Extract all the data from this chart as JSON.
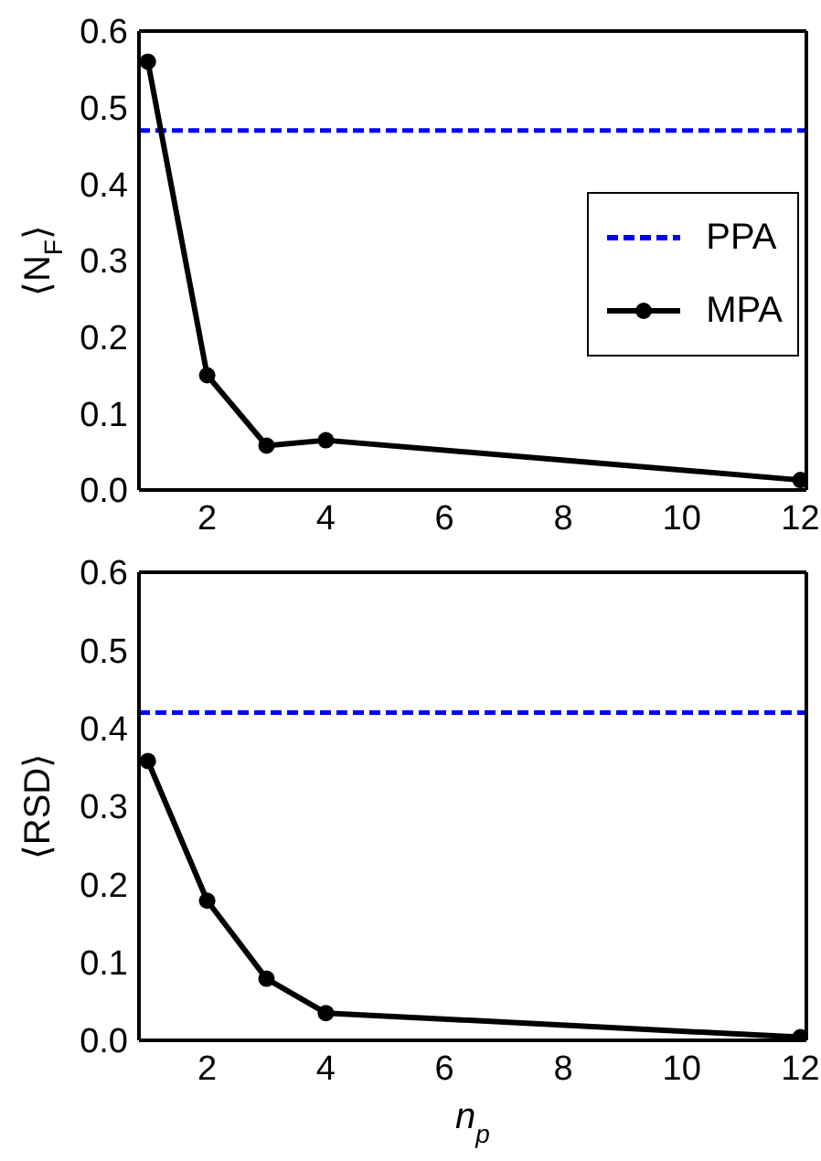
{
  "chart_data": [
    {
      "type": "line",
      "ylabel": "⟨N$_{F}$⟩",
      "xlim": [
        0.85,
        12.1
      ],
      "xticks": [
        2,
        4,
        6,
        8,
        10,
        12
      ],
      "ylim": [
        0,
        0.6
      ],
      "yticks": [
        {
          "value": 0,
          "label": "0.0"
        },
        {
          "value": 0.1,
          "label": "0.1"
        },
        {
          "value": 0.2,
          "label": "0.2"
        },
        {
          "value": 0.3,
          "label": "0.3"
        },
        {
          "value": 0.4,
          "label": "0.4"
        },
        {
          "value": 0.5,
          "label": "0.5"
        },
        {
          "value": 0.6,
          "label": "0.6"
        }
      ],
      "legend": "right",
      "series": [
        {
          "name": "PPA",
          "color": "#0000ff",
          "line_style": "dashed",
          "marker": "none",
          "x": [
            0.85,
            12.1
          ],
          "values": [
            0.47,
            0.47
          ]
        },
        {
          "name": "MPA",
          "color": "#000000",
          "line_style": "solid",
          "marker": "circle",
          "x": [
            1,
            2,
            3,
            4,
            12
          ],
          "values": [
            0.56,
            0.15,
            0.058,
            0.065,
            0.013
          ]
        }
      ]
    },
    {
      "type": "line",
      "ylabel": "⟨RSD⟩",
      "xlabel": "n$_{p}$",
      "xlim": [
        0.85,
        12.1
      ],
      "xticks": [
        2,
        4,
        6,
        8,
        10,
        12
      ],
      "ylim": [
        0,
        0.6
      ],
      "yticks": [
        {
          "value": 0,
          "label": "0.0"
        },
        {
          "value": 0.1,
          "label": "0.1"
        },
        {
          "value": 0.2,
          "label": "0.2"
        },
        {
          "value": 0.3,
          "label": "0.3"
        },
        {
          "value": 0.4,
          "label": "0.4"
        },
        {
          "value": 0.5,
          "label": "0.5"
        },
        {
          "value": 0.6,
          "label": "0.6"
        }
      ],
      "legend": false,
      "series": [
        {
          "color": "#0000ff",
          "line_style": "dashed",
          "marker": "none",
          "x": [
            0.85,
            12.1
          ],
          "values": [
            0.42,
            0.42
          ]
        },
        {
          "color": "#000000",
          "line_style": "solid",
          "marker": "circle",
          "x": [
            1,
            2,
            3,
            4,
            12
          ],
          "values": [
            0.358,
            0.179,
            0.079,
            0.035,
            0.004
          ]
        }
      ]
    }
  ]
}
